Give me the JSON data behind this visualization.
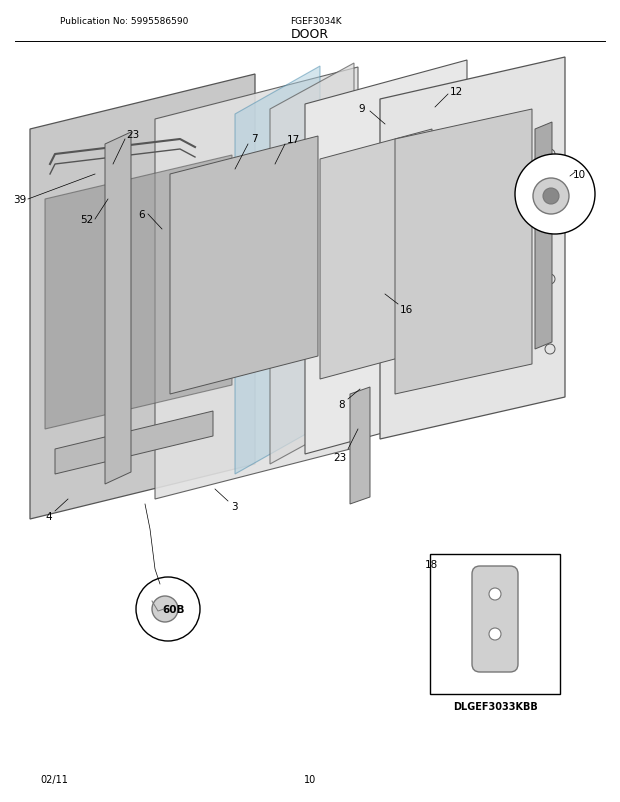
{
  "title": "DOOR",
  "pub_no": "Publication No: 5995586590",
  "model": "FGEF3034K",
  "date": "02/11",
  "page": "10",
  "inset1_label": "10",
  "inset2_label": "18",
  "inset2_model": "DLGEF3033KBB",
  "bg_color": "#ffffff",
  "part_labels": [
    "39",
    "52",
    "23",
    "6",
    "7",
    "17",
    "9",
    "12",
    "16",
    "8",
    "23",
    "3",
    "4",
    "60B"
  ],
  "title_line_color": "#000000",
  "diagram_color": "#888888"
}
